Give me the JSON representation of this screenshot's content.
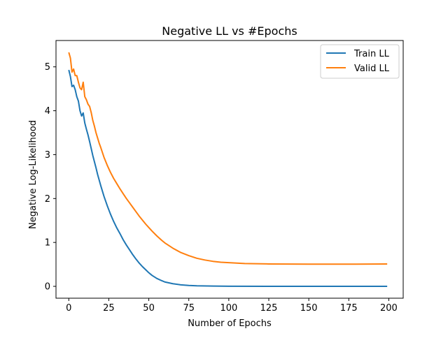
{
  "chart_data": {
    "type": "line",
    "title": "Negative LL vs #Epochs",
    "xlabel": "Number of Epochs",
    "ylabel": "Negative Log-Likelihood",
    "xlim": [
      -8,
      209
    ],
    "ylim": [
      -0.27,
      5.6
    ],
    "xticks": [
      0,
      25,
      50,
      75,
      100,
      125,
      150,
      175,
      200
    ],
    "yticks": [
      0,
      1,
      2,
      3,
      4,
      5
    ],
    "grid": false,
    "legend": {
      "position": "top-right"
    },
    "series": [
      {
        "name": "Train LL",
        "color": "#1f77b4",
        "points": [
          [
            0,
            4.93
          ],
          [
            1,
            4.78
          ],
          [
            2,
            4.55
          ],
          [
            3,
            4.58
          ],
          [
            4,
            4.48
          ],
          [
            5,
            4.32
          ],
          [
            6,
            4.22
          ],
          [
            7,
            4.0
          ],
          [
            8,
            3.88
          ],
          [
            9,
            3.95
          ],
          [
            10,
            3.72
          ],
          [
            11,
            3.58
          ],
          [
            12,
            3.45
          ],
          [
            13,
            3.3
          ],
          [
            14,
            3.14
          ],
          [
            15,
            2.98
          ],
          [
            16,
            2.84
          ],
          [
            17,
            2.7
          ],
          [
            18,
            2.55
          ],
          [
            19,
            2.42
          ],
          [
            20,
            2.29
          ],
          [
            22,
            2.05
          ],
          [
            24,
            1.84
          ],
          [
            26,
            1.65
          ],
          [
            28,
            1.48
          ],
          [
            30,
            1.33
          ],
          [
            32,
            1.2
          ],
          [
            34,
            1.06
          ],
          [
            36,
            0.94
          ],
          [
            38,
            0.83
          ],
          [
            40,
            0.72
          ],
          [
            42,
            0.62
          ],
          [
            44,
            0.53
          ],
          [
            46,
            0.45
          ],
          [
            48,
            0.38
          ],
          [
            50,
            0.31
          ],
          [
            52,
            0.25
          ],
          [
            55,
            0.18
          ],
          [
            58,
            0.13
          ],
          [
            60,
            0.1
          ],
          [
            65,
            0.06
          ],
          [
            70,
            0.035
          ],
          [
            75,
            0.02
          ],
          [
            80,
            0.012
          ],
          [
            90,
            0.006
          ],
          [
            100,
            0.003
          ],
          [
            125,
            0.001
          ],
          [
            150,
            0.0
          ],
          [
            175,
            0.0
          ],
          [
            199,
            0.0
          ]
        ]
      },
      {
        "name": "Valid LL",
        "color": "#ff7f0e",
        "points": [
          [
            0,
            5.33
          ],
          [
            1,
            5.2
          ],
          [
            2,
            4.88
          ],
          [
            3,
            4.95
          ],
          [
            4,
            4.8
          ],
          [
            5,
            4.8
          ],
          [
            6,
            4.65
          ],
          [
            7,
            4.52
          ],
          [
            8,
            4.48
          ],
          [
            9,
            4.65
          ],
          [
            10,
            4.32
          ],
          [
            11,
            4.25
          ],
          [
            12,
            4.15
          ],
          [
            13,
            4.1
          ],
          [
            14,
            3.96
          ],
          [
            15,
            3.78
          ],
          [
            16,
            3.65
          ],
          [
            17,
            3.5
          ],
          [
            18,
            3.38
          ],
          [
            19,
            3.26
          ],
          [
            20,
            3.16
          ],
          [
            22,
            2.94
          ],
          [
            24,
            2.76
          ],
          [
            26,
            2.6
          ],
          [
            28,
            2.46
          ],
          [
            30,
            2.34
          ],
          [
            32,
            2.22
          ],
          [
            34,
            2.11
          ],
          [
            36,
            2.0
          ],
          [
            38,
            1.9
          ],
          [
            40,
            1.8
          ],
          [
            42,
            1.7
          ],
          [
            44,
            1.6
          ],
          [
            46,
            1.51
          ],
          [
            48,
            1.42
          ],
          [
            50,
            1.34
          ],
          [
            52,
            1.26
          ],
          [
            55,
            1.15
          ],
          [
            58,
            1.05
          ],
          [
            60,
            0.99
          ],
          [
            65,
            0.87
          ],
          [
            70,
            0.77
          ],
          [
            75,
            0.7
          ],
          [
            80,
            0.64
          ],
          [
            85,
            0.6
          ],
          [
            90,
            0.57
          ],
          [
            95,
            0.55
          ],
          [
            100,
            0.54
          ],
          [
            110,
            0.52
          ],
          [
            125,
            0.51
          ],
          [
            150,
            0.505
          ],
          [
            175,
            0.505
          ],
          [
            199,
            0.51
          ]
        ]
      }
    ]
  }
}
